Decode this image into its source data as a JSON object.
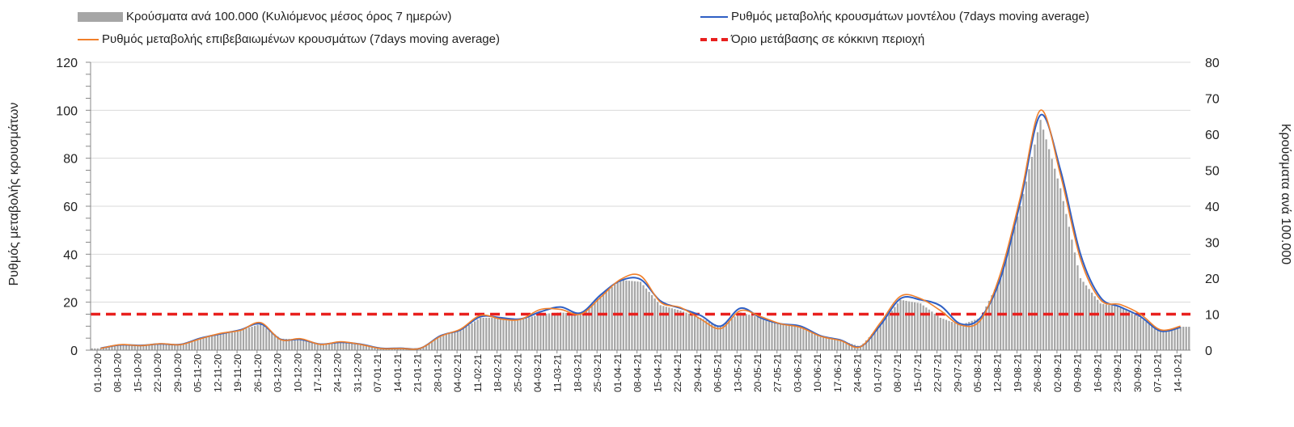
{
  "legend": {
    "bars": "Κρούσματα ανά 100.000 (Κυλιόμενος μέσος όρος 7 ημερών)",
    "model": "Ρυθμός μεταβολής κρουσμάτων μοντέλου (7days moving average)",
    "confirmed": "Ρυθμός μεταβολής επιβεβαιωμένων κρουσμάτων (7days moving average)",
    "threshold": "Όριο μετάβασης σε κόκκινη περιοχή"
  },
  "colors": {
    "bars": "#a6a6a6",
    "model": "#2f5fc4",
    "confirmed": "#f07f2a",
    "threshold": "#e8201e",
    "grid": "#d9d9d9"
  },
  "chart_data": {
    "type": "bar+line",
    "title": "",
    "ylabel_left": "Ρυθμός μεταβολής κρουσμάτων",
    "ylabel_right": "Κρούσματα ανά 100.000",
    "ylim_left": [
      0,
      120
    ],
    "ylim_right": [
      0,
      80
    ],
    "yticks_left": [
      "0",
      "20",
      "40",
      "60",
      "80",
      "100",
      "120"
    ],
    "yticks_right": [
      "0",
      "10",
      "20",
      "30",
      "40",
      "50",
      "60",
      "70",
      "80"
    ],
    "grid": true,
    "legend_position": "top",
    "x_categories": [
      "01-10-20",
      "08-10-20",
      "15-10-20",
      "22-10-20",
      "29-10-20",
      "05-11-20",
      "12-11-20",
      "19-11-20",
      "26-11-20",
      "03-12-20",
      "10-12-20",
      "17-12-20",
      "24-12-20",
      "31-12-20",
      "07-01-21",
      "14-01-21",
      "21-01-21",
      "28-01-21",
      "04-02-21",
      "11-02-21",
      "18-02-21",
      "25-02-21",
      "04-03-21",
      "11-03-21",
      "18-03-21",
      "25-03-21",
      "01-04-21",
      "08-04-21",
      "15-04-21",
      "22-04-21",
      "29-04-21",
      "06-05-21",
      "13-05-21",
      "20-05-21",
      "27-05-21",
      "03-06-21",
      "10-06-21",
      "17-06-21",
      "24-06-21",
      "01-07-21",
      "08-07-21",
      "15-07-21",
      "22-07-21",
      "29-07-21",
      "05-08-21",
      "12-08-21",
      "19-08-21",
      "26-08-21",
      "02-09-21",
      "09-09-21",
      "16-09-21",
      "23-09-21",
      "30-09-21",
      "07-10-21",
      "14-10-21"
    ],
    "series": [
      {
        "name": "Κρούσματα ανά 100.000 (Κυλιόμενος μέσος όρος 7 ημερών)",
        "type": "bar",
        "axis": "right",
        "values": [
          0.5,
          1.3,
          1.3,
          1.8,
          1.6,
          3.5,
          4.5,
          5.5,
          7.3,
          3.2,
          3.0,
          1.5,
          2.2,
          1.5,
          0.5,
          0.5,
          0.5,
          4.0,
          5.5,
          9.0,
          9.0,
          8.5,
          10.0,
          10.5,
          10.0,
          15.0,
          19.5,
          19.0,
          12.5,
          11.0,
          9.0,
          6.5,
          10.5,
          9.0,
          7.3,
          6.5,
          4.0,
          2.7,
          1.0,
          7.0,
          14.0,
          13.0,
          9.0,
          7.0,
          9.0,
          20.0,
          40.0,
          64.0,
          45.0,
          20.0,
          13.0,
          12.0,
          9.0,
          5.3,
          6.5
        ]
      },
      {
        "name": "Ρυθμός μεταβολής κρουσμάτων μοντέλου (7days moving average)",
        "type": "line",
        "axis": "left",
        "values": [
          0.8,
          2.2,
          2.0,
          2.6,
          2.4,
          5.0,
          6.8,
          8.5,
          11.0,
          4.5,
          4.5,
          2.5,
          3.3,
          2.5,
          0.8,
          0.8,
          0.8,
          6.0,
          8.5,
          14.0,
          13.5,
          13.0,
          16.0,
          18.0,
          15.5,
          23.0,
          29.0,
          29.5,
          20.5,
          17.5,
          14.5,
          10.0,
          17.5,
          13.5,
          11.0,
          10.0,
          6.0,
          4.2,
          1.5,
          10.5,
          21.5,
          21.0,
          18.5,
          11.0,
          13.5,
          30.0,
          62.0,
          98.0,
          75.0,
          40.0,
          22.0,
          18.0,
          14.0,
          8.0,
          9.5
        ]
      },
      {
        "name": "Ρυθμός μεταβολής επιβεβαιωμένων κρουσμάτων (7days moving average)",
        "type": "line",
        "axis": "left",
        "values": [
          0.7,
          2.3,
          1.9,
          2.7,
          2.3,
          4.8,
          7.0,
          8.3,
          11.5,
          4.4,
          4.8,
          2.4,
          3.5,
          2.4,
          0.7,
          0.7,
          0.8,
          5.8,
          8.8,
          14.5,
          13.0,
          12.8,
          17.0,
          17.0,
          15.0,
          22.0,
          29.5,
          31.0,
          20.0,
          17.8,
          13.0,
          9.0,
          16.5,
          14.0,
          11.0,
          9.5,
          5.8,
          4.0,
          1.4,
          11.5,
          22.5,
          21.5,
          16.5,
          10.5,
          12.5,
          32.0,
          64.0,
          100.0,
          73.0,
          38.0,
          21.0,
          19.0,
          15.0,
          8.5,
          10.0
        ]
      },
      {
        "name": "Όριο μετάβασης σε κόκκινη περιοχή",
        "type": "line",
        "axis": "left",
        "values_constant": 15
      }
    ]
  }
}
